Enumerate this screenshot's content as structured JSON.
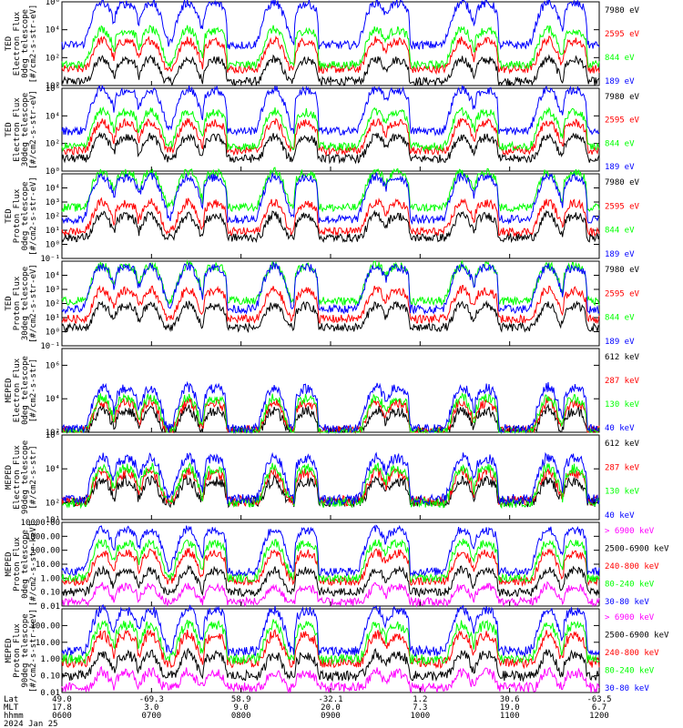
{
  "figure": {
    "width": 750,
    "height": 800
  },
  "colors": {
    "blue": "#0000ff",
    "red": "#ff0000",
    "green": "#00ff00",
    "black": "#000000",
    "magenta": "#ff00ff"
  },
  "chart_data": [
    {
      "type": "line",
      "ylabel": [
        "TED",
        "Electron Flux",
        "0deg telescope",
        "[#/cm2-s-str-eV]"
      ],
      "ylim": [
        1,
        1000000
      ],
      "log": true,
      "yticks": [
        "10⁶",
        "10⁴",
        "10²",
        "10⁰"
      ],
      "ytick_values": [
        1000000,
        10000,
        100,
        1
      ],
      "series": [
        {
          "name": "7980 eV",
          "color": "#000000"
        },
        {
          "name": "2595 eV",
          "color": "#ff0000"
        },
        {
          "name": "844 eV",
          "color": "#00ff00"
        },
        {
          "name": "189 eV",
          "color": "#0000ff"
        }
      ],
      "baselines": [
        2,
        15,
        30,
        800
      ]
    },
    {
      "type": "line",
      "ylabel": [
        "TED",
        "Electron Flux",
        "30deg telescope",
        "[#/cm2-s-str-eV]"
      ],
      "ylim": [
        1,
        1000000
      ],
      "log": true,
      "yticks": [
        "10⁶",
        "10⁴",
        "10²",
        "10⁰"
      ],
      "ytick_values": [
        1000000,
        10000,
        100,
        1
      ],
      "series": [
        {
          "name": "7980 eV",
          "color": "#000000"
        },
        {
          "name": "2595 eV",
          "color": "#ff0000"
        },
        {
          "name": "844 eV",
          "color": "#00ff00"
        },
        {
          "name": "189 eV",
          "color": "#0000ff"
        }
      ],
      "baselines": [
        8,
        30,
        60,
        800
      ]
    },
    {
      "type": "line",
      "ylabel": [
        "TED",
        "Proton Flux",
        "0deg telescope",
        "[#/cm2-s-str-eV]"
      ],
      "ylim": [
        0.1,
        100000
      ],
      "log": true,
      "yticks": [
        "10⁴",
        "10³",
        "10²",
        "10¹",
        "10⁰",
        "10⁻¹"
      ],
      "ytick_values": [
        10000,
        1000,
        100,
        10,
        1,
        0.1
      ],
      "series": [
        {
          "name": "7980 eV",
          "color": "#000000"
        },
        {
          "name": "2595 eV",
          "color": "#ff0000"
        },
        {
          "name": "844 eV",
          "color": "#00ff00"
        },
        {
          "name": "189 eV",
          "color": "#0000ff"
        }
      ],
      "baselines": [
        3,
        8,
        400,
        60
      ]
    },
    {
      "type": "line",
      "ylabel": [
        "TED",
        "Proton Flux",
        "30deg telescope",
        "[#/cm2-s-str-eV]"
      ],
      "ylim": [
        0.1,
        100000
      ],
      "log": true,
      "yticks": [
        "10⁴",
        "10³",
        "10²",
        "10¹",
        "10⁰",
        "10⁻¹"
      ],
      "ytick_values": [
        10000,
        1000,
        100,
        10,
        1,
        0.1
      ],
      "series": [
        {
          "name": "7980 eV",
          "color": "#000000"
        },
        {
          "name": "2595 eV",
          "color": "#ff0000"
        },
        {
          "name": "844 eV",
          "color": "#00ff00"
        },
        {
          "name": "189 eV",
          "color": "#0000ff"
        }
      ],
      "baselines": [
        2,
        8,
        150,
        40
      ]
    },
    {
      "type": "line",
      "ylabel": [
        "MEPED",
        "Electron Flux",
        "0deg telescope",
        "[#/cm2-s-str]"
      ],
      "ylim": [
        100,
        10000000
      ],
      "log": true,
      "yticks": [
        "10⁶",
        "10⁴",
        "10²"
      ],
      "ytick_values": [
        1000000,
        10000,
        100
      ],
      "series": [
        {
          "name": "612 keV",
          "color": "#000000"
        },
        {
          "name": "287 keV",
          "color": "#ff0000"
        },
        {
          "name": "130 keV",
          "color": "#00ff00"
        },
        {
          "name": "40 keV",
          "color": "#0000ff"
        }
      ],
      "baselines": [
        110,
        130,
        100,
        160
      ]
    },
    {
      "type": "line",
      "ylabel": [
        "MEPED",
        "Electron Flux",
        "90deg telescope",
        "[#/cm2-s-str]"
      ],
      "ylim": [
        10,
        1000000
      ],
      "log": true,
      "yticks": [
        "10⁶",
        "10⁴",
        "10²",
        "10¹"
      ],
      "ytick_values": [
        1000000,
        10000,
        100,
        10
      ],
      "series": [
        {
          "name": "612 keV",
          "color": "#000000"
        },
        {
          "name": "287 keV",
          "color": "#ff0000"
        },
        {
          "name": "130 keV",
          "color": "#00ff00"
        },
        {
          "name": "40 keV",
          "color": "#0000ff"
        }
      ],
      "baselines": [
        110,
        130,
        100,
        160
      ]
    },
    {
      "type": "line",
      "ylabel": [
        "MEPED",
        "Proton Flux",
        "0deg telescope",
        "[#/cm2-s-str-keV]"
      ],
      "ylim": [
        0.01,
        10000
      ],
      "log": true,
      "yticks": [
        "10000.00",
        "1000.00",
        "100.00",
        "10.00",
        "1.00",
        "0.10",
        "0.01"
      ],
      "ytick_values": [
        10000,
        1000,
        100,
        10,
        1,
        0.1,
        0.01
      ],
      "series": [
        {
          "name": "> 6900 keV",
          "color": "#ff00ff"
        },
        {
          "name": "2500-6900 keV",
          "color": "#000000"
        },
        {
          "name": "240-800 keV",
          "color": "#ff0000"
        },
        {
          "name": "80-240 keV",
          "color": "#00ff00"
        },
        {
          "name": "30-80 keV",
          "color": "#0000ff"
        }
      ],
      "baselines": [
        0.02,
        0.1,
        0.6,
        1,
        3
      ]
    },
    {
      "type": "line",
      "ylabel": [
        "MEPED",
        "Proton Flux",
        "90deg telescope",
        "[#/cm2-s-str-keV]"
      ],
      "ylim": [
        0.01,
        1000
      ],
      "log": true,
      "yticks": [
        "100.00",
        "10.00",
        "1.00",
        "0.10",
        "0.01"
      ],
      "ytick_values": [
        100,
        10,
        1,
        0.1,
        0.01
      ],
      "series": [
        {
          "name": "> 6900 keV",
          "color": "#ff00ff"
        },
        {
          "name": "2500-6900 keV",
          "color": "#000000"
        },
        {
          "name": "240-800 keV",
          "color": "#ff0000"
        },
        {
          "name": "80-240 keV",
          "color": "#00ff00"
        },
        {
          "name": "30-80 keV",
          "color": "#0000ff"
        }
      ],
      "baselines": [
        0.02,
        0.1,
        0.6,
        1,
        3
      ]
    }
  ],
  "x_axis": {
    "row_labels": [
      "Lat",
      "MLT",
      "hhmm",
      "2024 Jan 25"
    ],
    "ticks": [
      {
        "lat": "49.0",
        "mlt": "17.8",
        "hhmm": "0600"
      },
      {
        "lat": "-69.3",
        "mlt": "3.0",
        "hhmm": "0700"
      },
      {
        "lat": "58.9",
        "mlt": "9.0",
        "hhmm": "0800"
      },
      {
        "lat": "-32.1",
        "mlt": "20.0",
        "hhmm": "0900"
      },
      {
        "lat": "1.2",
        "mlt": "7.3",
        "hhmm": "1000"
      },
      {
        "lat": "30.6",
        "mlt": "19.0",
        "hhmm": "1100"
      },
      {
        "lat": "-63.5",
        "mlt": "6.7",
        "hhmm": "1200"
      }
    ]
  },
  "events": {
    "peaks": [
      0.075,
      0.165,
      0.235,
      0.395,
      0.585,
      0.745,
      0.905
    ],
    "domes": [
      0.12,
      0.285,
      0.455,
      0.625,
      0.79,
      0.955
    ]
  }
}
